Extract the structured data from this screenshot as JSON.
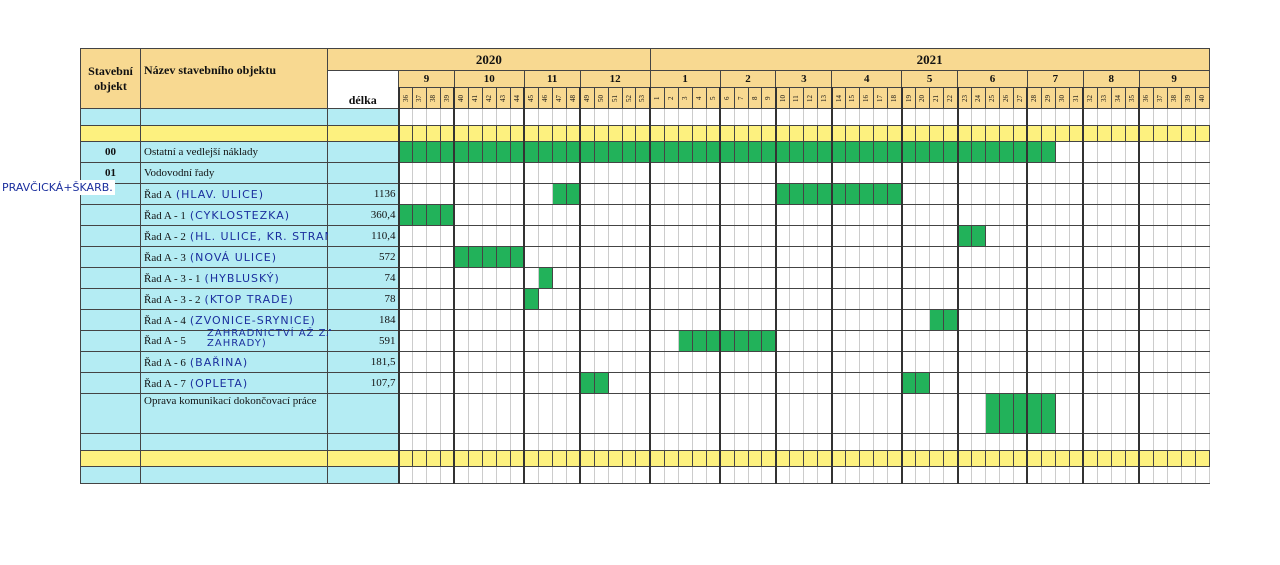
{
  "header": {
    "object_col": "Stavební objekt",
    "name_col": "Název stavebního objektu",
    "length_col": "délka"
  },
  "timeline": [
    {
      "year": "2020",
      "months": [
        {
          "month": "9",
          "weeks": [
            36,
            37,
            38,
            39
          ]
        },
        {
          "month": "10",
          "weeks": [
            40,
            41,
            42,
            43,
            44
          ]
        },
        {
          "month": "11",
          "weeks": [
            45,
            46,
            47,
            48
          ]
        },
        {
          "month": "12",
          "weeks": [
            49,
            50,
            51,
            52,
            53
          ]
        }
      ]
    },
    {
      "year": "2021",
      "months": [
        {
          "month": "1",
          "weeks": [
            1,
            2,
            3,
            4,
            5
          ]
        },
        {
          "month": "2",
          "weeks": [
            6,
            7,
            8,
            9
          ]
        },
        {
          "month": "3",
          "weeks": [
            10,
            11,
            12,
            13
          ]
        },
        {
          "month": "4",
          "weeks": [
            14,
            15,
            16,
            17,
            18
          ]
        },
        {
          "month": "5",
          "weeks": [
            19,
            20,
            21,
            22
          ]
        },
        {
          "month": "6",
          "weeks": [
            23,
            24,
            25,
            26,
            27
          ]
        },
        {
          "month": "7",
          "weeks": [
            28,
            29,
            30,
            31
          ]
        },
        {
          "month": "8",
          "weeks": [
            32,
            33,
            34,
            35
          ]
        },
        {
          "month": "9",
          "weeks": [
            36,
            37,
            38,
            39,
            40
          ]
        }
      ]
    }
  ],
  "rows": [
    {
      "type": "blank",
      "bars": []
    },
    {
      "type": "yellow",
      "bars": []
    },
    {
      "type": "item",
      "code": "00",
      "name": "Ostatní a vedlejší náklady",
      "note": "",
      "length": "",
      "bars": [
        {
          "from": "2020-36",
          "to": "2021-29"
        }
      ]
    },
    {
      "type": "item",
      "code": "01",
      "name": "Vodovodní řady",
      "note": "",
      "length": "",
      "bars": []
    },
    {
      "type": "item",
      "code": "",
      "name": "Řad A",
      "note": "(HLAV. ULICE)",
      "length": "1136",
      "bars": [
        {
          "from": "2020-47",
          "to": "2020-48"
        },
        {
          "from": "2021-10",
          "to": "2021-18"
        }
      ]
    },
    {
      "type": "item",
      "code": "",
      "name": "Řad A - 1",
      "note": "(CYKLOSTEZKA)",
      "length": "360,4",
      "bars": [
        {
          "from": "2020-36",
          "to": "2020-39"
        }
      ]
    },
    {
      "type": "item",
      "code": "",
      "name": "Řad A - 2",
      "note": "(HL. ULICE, KR. STRANA)",
      "length": "110,4",
      "bars": [
        {
          "from": "2021-23",
          "to": "2021-24"
        }
      ]
    },
    {
      "type": "item",
      "code": "",
      "name": "Řad A - 3",
      "note": "(NOVÁ ULICE)",
      "length": "572",
      "bars": [
        {
          "from": "2020-40",
          "to": "2020-44"
        }
      ]
    },
    {
      "type": "item",
      "code": "",
      "name": "Řad A - 3 - 1",
      "note": "(HYBLUSKÝ)",
      "length": "74",
      "bars": [
        {
          "from": "2020-46",
          "to": "2020-46"
        }
      ]
    },
    {
      "type": "item",
      "code": "",
      "name": "Řad A - 3 - 2",
      "note": "(KTOP TRADE)",
      "length": "78",
      "bars": [
        {
          "from": "2020-45",
          "to": "2020-45"
        }
      ]
    },
    {
      "type": "item",
      "code": "",
      "name": "Řad A - 4",
      "note": "(ZVONICE-SRYNICE)",
      "length": "184",
      "bars": [
        {
          "from": "2021-21",
          "to": "2021-22"
        }
      ]
    },
    {
      "type": "item",
      "code": "",
      "name": "Řad A - 5",
      "note": "ZAHRADNICTVÍ AŽ ZA ZAHRADY)",
      "note_two_line": true,
      "length": "591",
      "bars": [
        {
          "from": "2021-3",
          "to": "2021-9"
        }
      ]
    },
    {
      "type": "item",
      "code": "",
      "name": "Řad A - 6",
      "note": "(BAŘINA)",
      "length": "181,5",
      "bars": []
    },
    {
      "type": "item",
      "code": "",
      "name": "Řad A - 7",
      "note": "(OPLETA)",
      "length": "107,7",
      "bars": [
        {
          "from": "2020-49",
          "to": "2020-50"
        },
        {
          "from": "2021-19",
          "to": "2021-20"
        }
      ]
    },
    {
      "type": "item",
      "tall": true,
      "code": "",
      "name": "Oprava komunikací dokončovací práce",
      "note": "",
      "length": "",
      "bars": [
        {
          "from": "2021-25",
          "to": "2021-29"
        }
      ]
    },
    {
      "type": "blank",
      "bars": []
    },
    {
      "type": "yellow",
      "bars": []
    },
    {
      "type": "blank",
      "bars": []
    }
  ],
  "margin_note": "PRAVČICKÁ+ŠKARB.",
  "colors": {
    "header": "#f8d991",
    "label_cells": "#b4ecf3",
    "separator": "#fdf17f",
    "bar": "#22b25a",
    "handwriting": "#1b2f9e"
  }
}
